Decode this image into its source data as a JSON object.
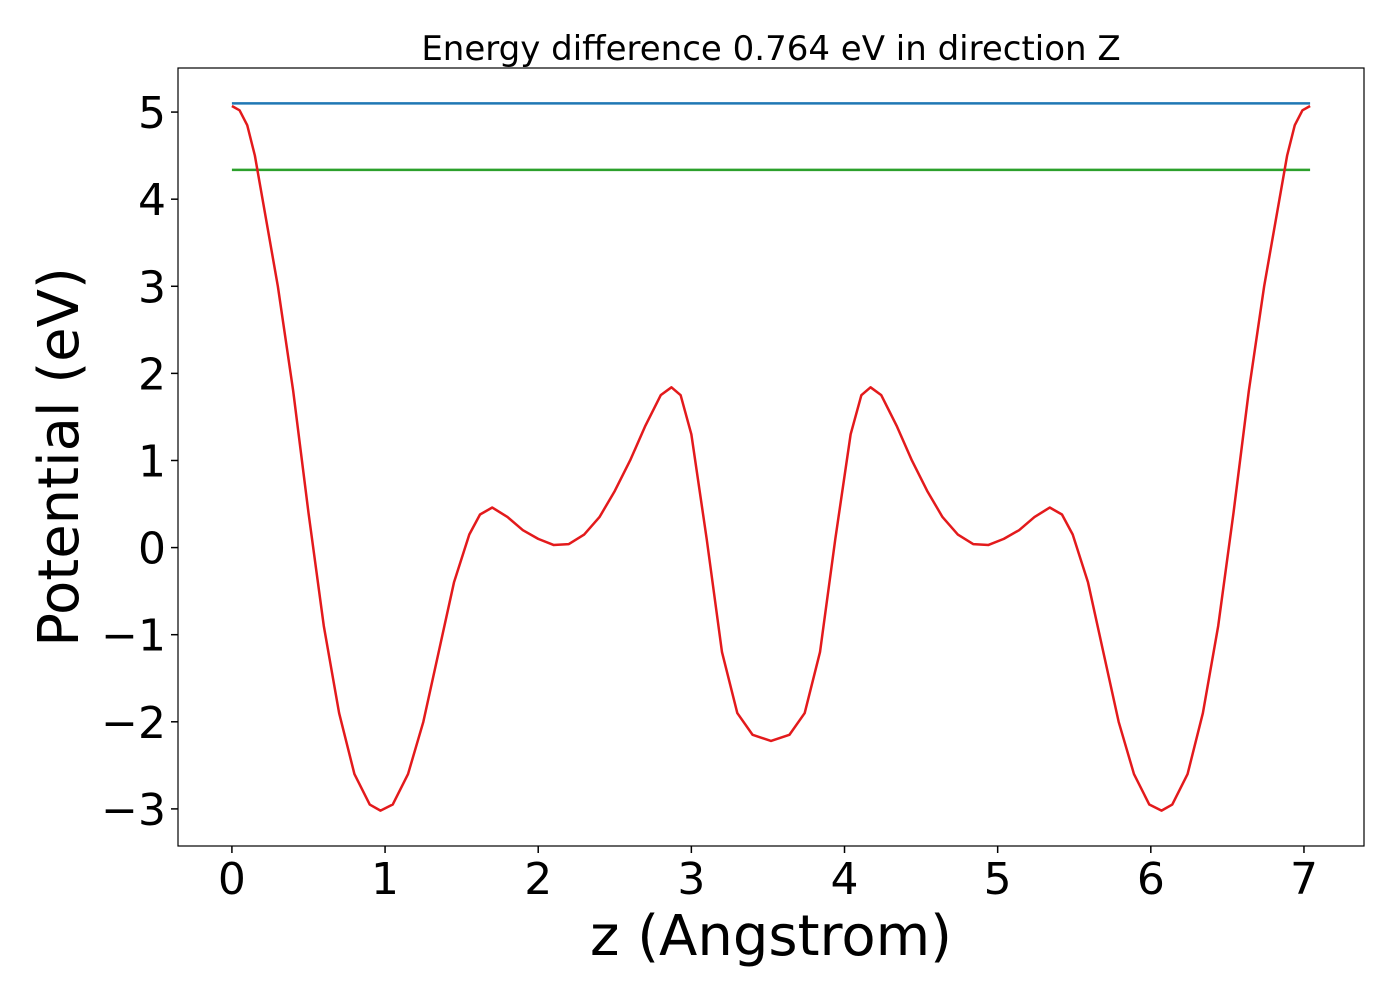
{
  "chart_data": {
    "type": "line",
    "title": "Energy difference 0.764 eV in direction Z",
    "xlabel": "z (Angstrom)",
    "ylabel": "Potential (eV)",
    "xlim": [
      -0.352,
      7.392
    ],
    "ylim": [
      -3.426,
      5.506
    ],
    "xticks": [
      0,
      1,
      2,
      3,
      4,
      5,
      6,
      7
    ],
    "yticks": [
      {
        "value": -3,
        "label": "−3"
      },
      {
        "value": -2,
        "label": "−2"
      },
      {
        "value": -1,
        "label": "−1"
      },
      0,
      1,
      2,
      3,
      4,
      5
    ],
    "grid": false,
    "series": [
      {
        "color": "#1f77b4",
        "x": [
          0,
          7.04
        ],
        "values": [
          5.1,
          5.1
        ]
      },
      {
        "color": "#2ca02c",
        "x": [
          0,
          7.04
        ],
        "values": [
          4.336,
          4.336
        ]
      },
      {
        "color": "#e31a1c",
        "x": [
          0,
          0.05,
          0.1,
          0.15,
          0.2,
          0.3,
          0.4,
          0.5,
          0.6,
          0.7,
          0.8,
          0.9,
          0.97,
          1.05,
          1.15,
          1.25,
          1.35,
          1.45,
          1.55,
          1.62,
          1.7,
          1.8,
          1.9,
          2.0,
          2.1,
          2.2,
          2.3,
          2.4,
          2.5,
          2.6,
          2.7,
          2.8,
          2.87,
          2.93,
          3.0,
          3.1,
          3.2,
          3.3,
          3.4,
          3.52,
          3.64,
          3.74,
          3.84,
          3.94,
          4.04,
          4.11,
          4.17,
          4.24,
          4.34,
          4.44,
          4.54,
          4.64,
          4.74,
          4.84,
          4.94,
          5.04,
          5.14,
          5.24,
          5.34,
          5.42,
          5.49,
          5.59,
          5.69,
          5.79,
          5.89,
          5.99,
          6.07,
          6.14,
          6.24,
          6.34,
          6.44,
          6.54,
          6.64,
          6.74,
          6.84,
          6.89,
          6.94,
          6.99,
          7.04
        ],
        "values": [
          5.07,
          5.02,
          4.85,
          4.5,
          4.0,
          3.0,
          1.8,
          0.4,
          -0.9,
          -1.9,
          -2.6,
          -2.95,
          -3.02,
          -2.95,
          -2.6,
          -2.0,
          -1.2,
          -0.4,
          0.15,
          0.38,
          0.46,
          0.35,
          0.2,
          0.1,
          0.03,
          0.04,
          0.15,
          0.35,
          0.65,
          1.0,
          1.4,
          1.75,
          1.84,
          1.75,
          1.3,
          0.1,
          -1.2,
          -1.9,
          -2.15,
          -2.22,
          -2.15,
          -1.9,
          -1.2,
          0.1,
          1.3,
          1.75,
          1.84,
          1.75,
          1.4,
          1.0,
          0.65,
          0.35,
          0.15,
          0.04,
          0.03,
          0.1,
          0.2,
          0.35,
          0.46,
          0.38,
          0.15,
          -0.4,
          -1.2,
          -2.0,
          -2.6,
          -2.95,
          -3.02,
          -2.95,
          -2.6,
          -1.9,
          -0.9,
          0.4,
          1.8,
          3.0,
          4.0,
          4.5,
          4.85,
          5.02,
          5.07
        ]
      }
    ]
  }
}
